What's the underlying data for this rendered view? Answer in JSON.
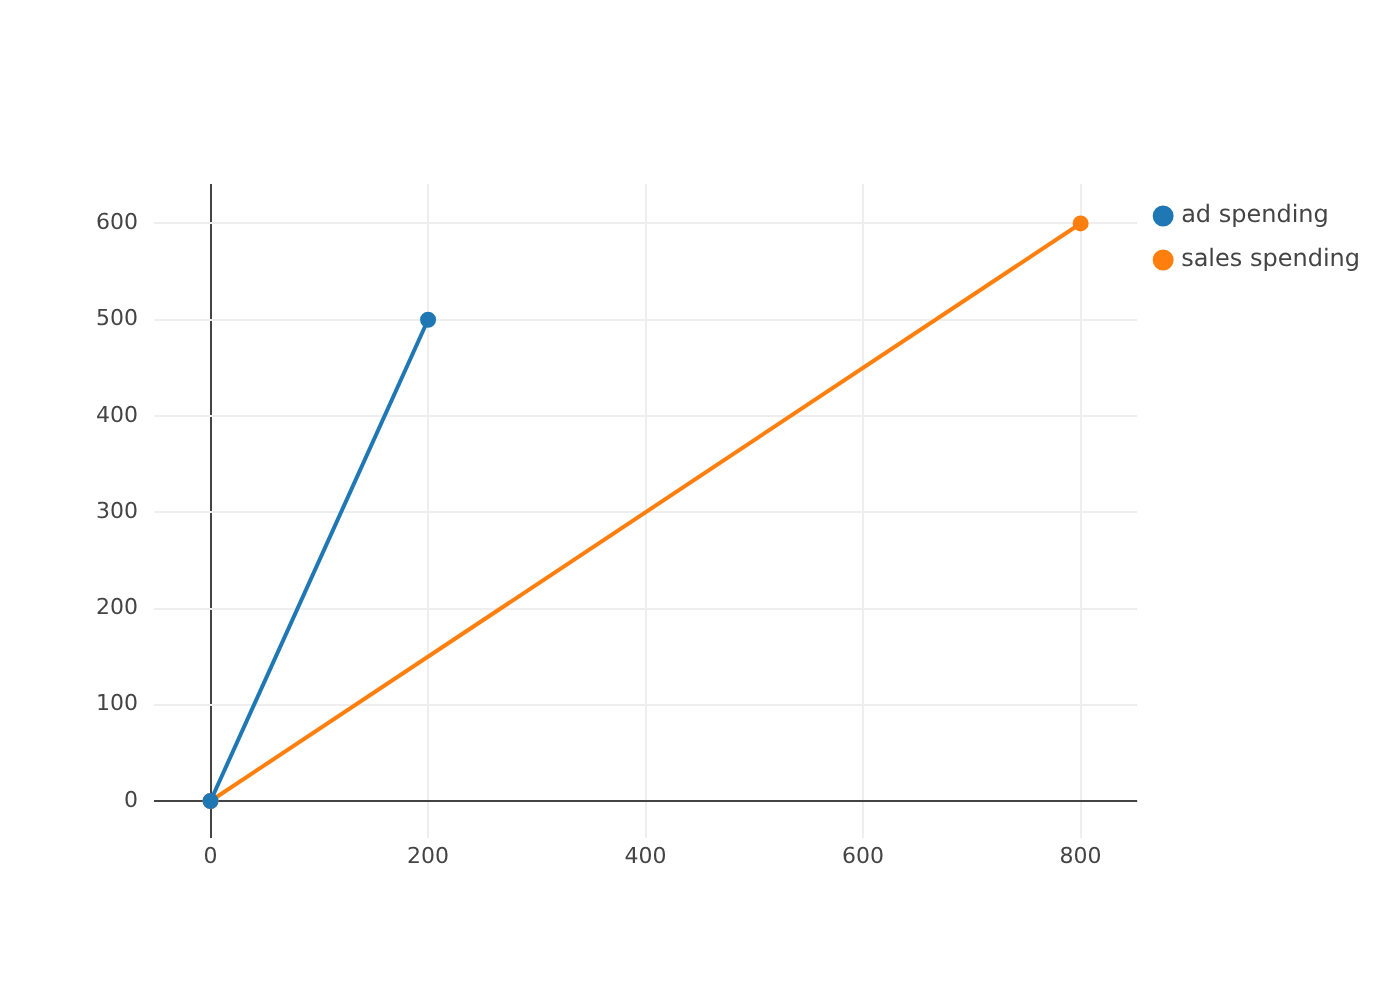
{
  "chart_data": {
    "type": "line",
    "series": [
      {
        "name": "ad spending",
        "color": "#1f77b4",
        "x": [
          0,
          200
        ],
        "values": [
          0,
          500
        ]
      },
      {
        "name": "sales spending",
        "color": "#ff7f0e",
        "x": [
          0,
          800
        ],
        "values": [
          0,
          600
        ]
      }
    ],
    "xlim": [
      -52,
      852
    ],
    "xticks": [
      0,
      200,
      400,
      600,
      800
    ],
    "ylim": [
      -38,
      641
    ],
    "yticks": [
      0,
      100,
      200,
      300,
      400,
      500,
      600
    ],
    "grid": true,
    "legend": "top right",
    "marker": "circle",
    "line_style": "solid"
  }
}
